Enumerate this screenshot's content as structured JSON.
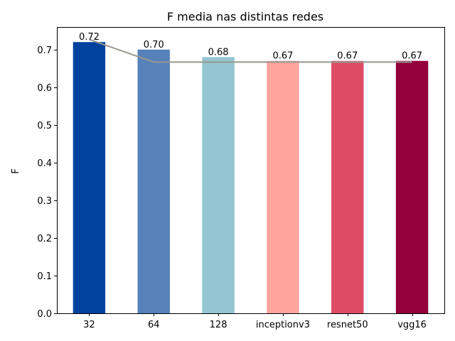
{
  "chart_data": {
    "type": "bar",
    "title": "F media nas distintas redes",
    "xlabel": "",
    "ylabel": "F",
    "categories": [
      "32",
      "64",
      "128",
      "inceptionv3",
      "resnet50",
      "vgg16"
    ],
    "values": [
      0.72,
      0.7,
      0.68,
      0.67,
      0.67,
      0.67
    ],
    "value_labels": [
      "0.72",
      "0.70",
      "0.68",
      "0.67",
      "0.67",
      "0.67"
    ],
    "bar_colors": [
      "#00429d",
      "#5681b9",
      "#93c4d2",
      "#ffa59e",
      "#dd4c65",
      "#93003a"
    ],
    "line": {
      "values": [
        0.727,
        0.667,
        0.667,
        0.667,
        0.667,
        0.667
      ],
      "color": "#999990"
    },
    "ylim": [
      0,
      0.76
    ],
    "yticks": [
      0.0,
      0.1,
      0.2,
      0.3,
      0.4,
      0.5,
      0.6,
      0.7
    ],
    "ytick_labels": [
      "0.0",
      "0.1",
      "0.2",
      "0.3",
      "0.4",
      "0.5",
      "0.6",
      "0.7"
    ],
    "grid": false,
    "legend": "none"
  }
}
